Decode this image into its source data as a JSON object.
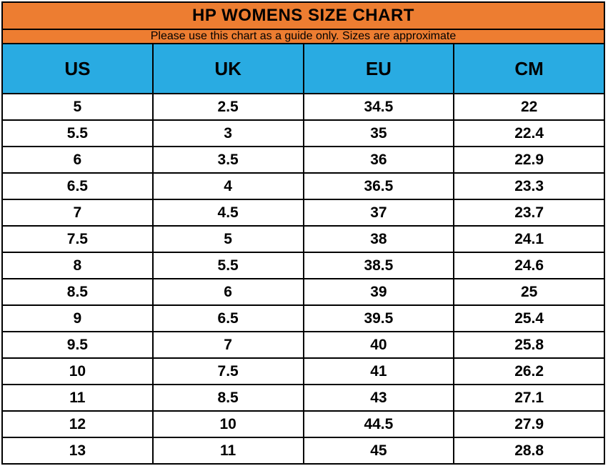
{
  "header": {
    "title": "HP WOMENS SIZE CHART",
    "subtitle": "Please use this chart as a guide only. Sizes are approximate"
  },
  "colors": {
    "title_band": "#ED7D31",
    "header_band": "#29ABE2",
    "border": "#000000",
    "text": "#000000",
    "row_background": "#FFFFFF"
  },
  "table": {
    "columns": [
      "US",
      "UK",
      "EU",
      "CM"
    ],
    "rows": [
      [
        "5",
        "2.5",
        "34.5",
        "22"
      ],
      [
        "5.5",
        "3",
        "35",
        "22.4"
      ],
      [
        "6",
        "3.5",
        "36",
        "22.9"
      ],
      [
        "6.5",
        "4",
        "36.5",
        "23.3"
      ],
      [
        "7",
        "4.5",
        "37",
        "23.7"
      ],
      [
        "7.5",
        "5",
        "38",
        "24.1"
      ],
      [
        "8",
        "5.5",
        "38.5",
        "24.6"
      ],
      [
        "8.5",
        "6",
        "39",
        "25"
      ],
      [
        "9",
        "6.5",
        "39.5",
        "25.4"
      ],
      [
        "9.5",
        "7",
        "40",
        "25.8"
      ],
      [
        "10",
        "7.5",
        "41",
        "26.2"
      ],
      [
        "11",
        "8.5",
        "43",
        "27.1"
      ],
      [
        "12",
        "10",
        "44.5",
        "27.9"
      ],
      [
        "13",
        "11",
        "45",
        "28.8"
      ]
    ]
  },
  "chart_data": {
    "type": "table",
    "title": "HP WOMENS SIZE CHART",
    "subtitle": "Please use this chart as a guide only. Sizes are approximate",
    "columns": [
      "US",
      "UK",
      "EU",
      "CM"
    ],
    "rows": [
      [
        5,
        2.5,
        34.5,
        22
      ],
      [
        5.5,
        3,
        35,
        22.4
      ],
      [
        6,
        3.5,
        36,
        22.9
      ],
      [
        6.5,
        4,
        36.5,
        23.3
      ],
      [
        7,
        4.5,
        37,
        23.7
      ],
      [
        7.5,
        5,
        38,
        24.1
      ],
      [
        8,
        5.5,
        38.5,
        24.6
      ],
      [
        8.5,
        6,
        39,
        25
      ],
      [
        9,
        6.5,
        39.5,
        25.4
      ],
      [
        9.5,
        7,
        40,
        25.8
      ],
      [
        10,
        7.5,
        41,
        26.2
      ],
      [
        11,
        8.5,
        43,
        27.1
      ],
      [
        12,
        10,
        44.5,
        27.9
      ],
      [
        13,
        11,
        45,
        28.8
      ]
    ],
    "layout_hints": {
      "column_widths": "equal",
      "grid": true,
      "title_background": "#ED7D31",
      "header_background": "#29ABE2"
    }
  }
}
